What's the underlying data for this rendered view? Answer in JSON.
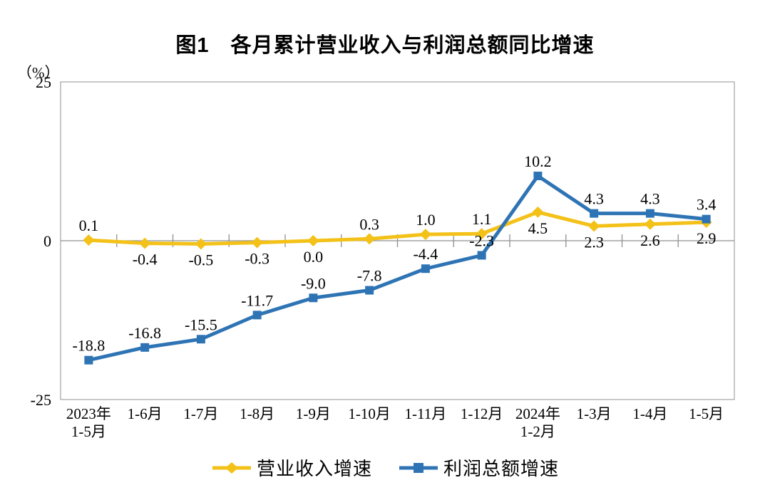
{
  "title": "图1　各月累计营业收入与利润总额同比增速",
  "y_axis_unit": "（%）",
  "chart_data": {
    "type": "line",
    "title": "图1 各月累计营业收入与利润总额同比增速",
    "categories": [
      "2023年\n1-5月",
      "1-6月",
      "1-7月",
      "1-8月",
      "1-9月",
      "1-10月",
      "1-11月",
      "1-12月",
      "2024年\n1-2月",
      "1-3月",
      "1-4月",
      "1-5月"
    ],
    "ylim": [
      -25,
      25
    ],
    "yticks": [
      {
        "value": 25,
        "label": "25"
      },
      {
        "value": 0,
        "label": "0"
      },
      {
        "value": -25,
        "label": "-25"
      }
    ],
    "grid": false,
    "legend_position": "bottom",
    "axis_color": "#909090",
    "text_color": "#000000",
    "series": [
      {
        "id": "revenue-growth",
        "name": "营业收入增速",
        "color": "#F3C118",
        "marker": "diamond",
        "values": [
          0.1,
          -0.4,
          -0.5,
          -0.3,
          0.0,
          0.3,
          1.0,
          1.1,
          4.5,
          2.3,
          2.6,
          2.9
        ],
        "labels": [
          "0.1",
          "-0.4",
          "-0.5",
          "-0.3",
          "0.0",
          "0.3",
          "1.0",
          "1.1",
          "4.5",
          "2.3",
          "2.6",
          "2.9"
        ],
        "labels_above": [
          true,
          false,
          false,
          false,
          false,
          true,
          true,
          true,
          false,
          false,
          false,
          false
        ]
      },
      {
        "id": "profit-growth",
        "name": "利润总额增速",
        "color": "#2E74B5",
        "marker": "square",
        "values": [
          -18.8,
          -16.8,
          -15.5,
          -11.7,
          -9.0,
          -7.8,
          -4.4,
          -2.3,
          10.2,
          4.3,
          4.3,
          3.4
        ],
        "labels": [
          "-18.8",
          "-16.8",
          "-15.5",
          "-11.7",
          "-9.0",
          "-7.8",
          "-4.4",
          "-2.3",
          "10.2",
          "4.3",
          "4.3",
          "3.4"
        ],
        "labels_above": [
          true,
          true,
          true,
          true,
          true,
          true,
          true,
          true,
          true,
          true,
          true,
          true
        ]
      }
    ]
  }
}
